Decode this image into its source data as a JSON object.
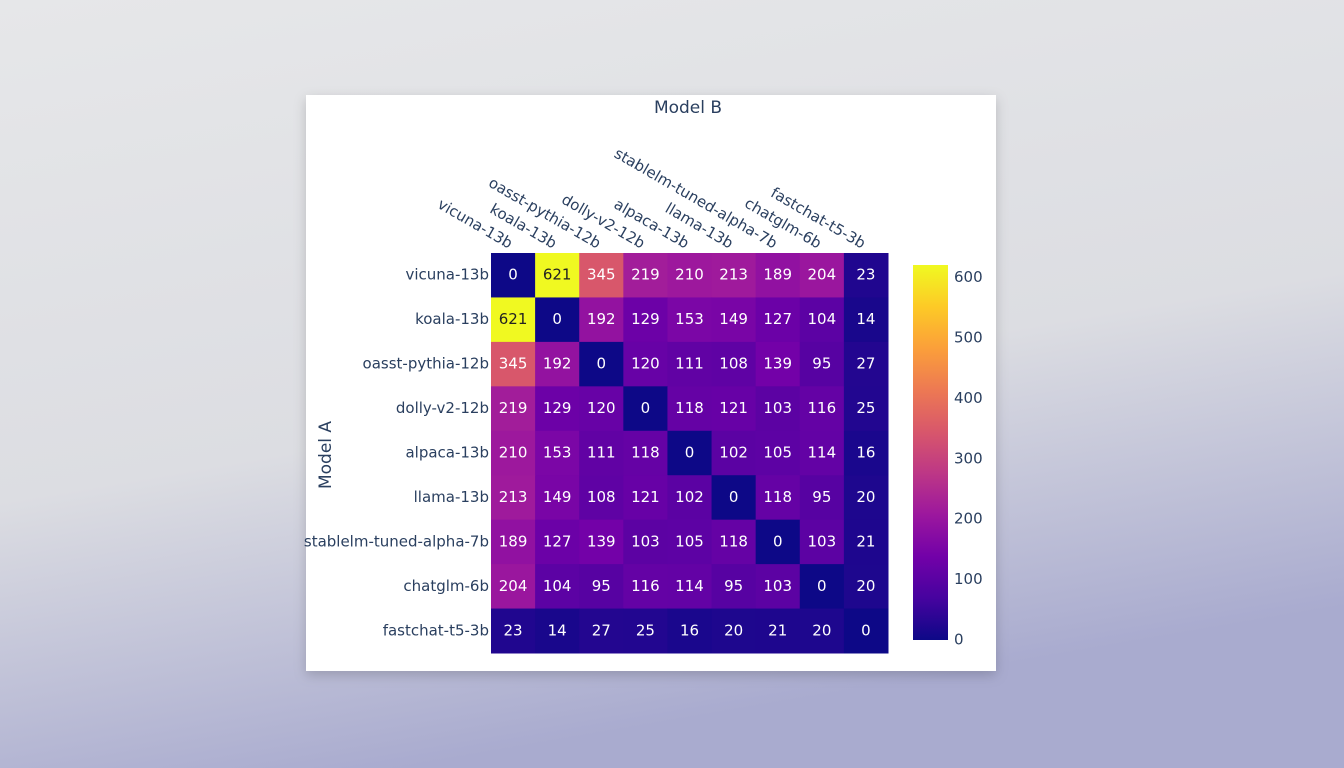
{
  "chart_data": {
    "type": "heatmap",
    "x_label": "Model B",
    "y_label": "Model A",
    "x": [
      "vicuna-13b",
      "koala-13b",
      "oasst-pythia-12b",
      "dolly-v2-12b",
      "alpaca-13b",
      "llama-13b",
      "stablelm-tuned-alpha-7b",
      "chatglm-6b",
      "fastchat-t5-3b"
    ],
    "y": [
      "vicuna-13b",
      "koala-13b",
      "oasst-pythia-12b",
      "dolly-v2-12b",
      "alpaca-13b",
      "llama-13b",
      "stablelm-tuned-alpha-7b",
      "chatglm-6b",
      "fastchat-t5-3b"
    ],
    "z": [
      [
        0,
        621,
        345,
        219,
        210,
        213,
        189,
        204,
        23
      ],
      [
        621,
        0,
        192,
        129,
        153,
        149,
        127,
        104,
        14
      ],
      [
        345,
        192,
        0,
        120,
        111,
        108,
        139,
        95,
        27
      ],
      [
        219,
        129,
        120,
        0,
        118,
        121,
        103,
        116,
        25
      ],
      [
        210,
        153,
        111,
        118,
        0,
        102,
        105,
        114,
        16
      ],
      [
        213,
        149,
        108,
        121,
        102,
        0,
        118,
        95,
        20
      ],
      [
        189,
        127,
        139,
        103,
        105,
        118,
        0,
        103,
        21
      ],
      [
        204,
        104,
        95,
        116,
        114,
        95,
        103,
        0,
        20
      ],
      [
        23,
        14,
        27,
        25,
        16,
        20,
        21,
        20,
        0
      ]
    ],
    "zlim": [
      0,
      621
    ],
    "zticks": [
      0,
      100,
      200,
      300,
      400,
      500,
      600
    ],
    "colorscale": [
      "#0d0887",
      "#46039f",
      "#7201a8",
      "#9c179e",
      "#bd3786",
      "#d8576b",
      "#ed7953",
      "#fb9f3a",
      "#fdca26",
      "#f0f921"
    ]
  }
}
